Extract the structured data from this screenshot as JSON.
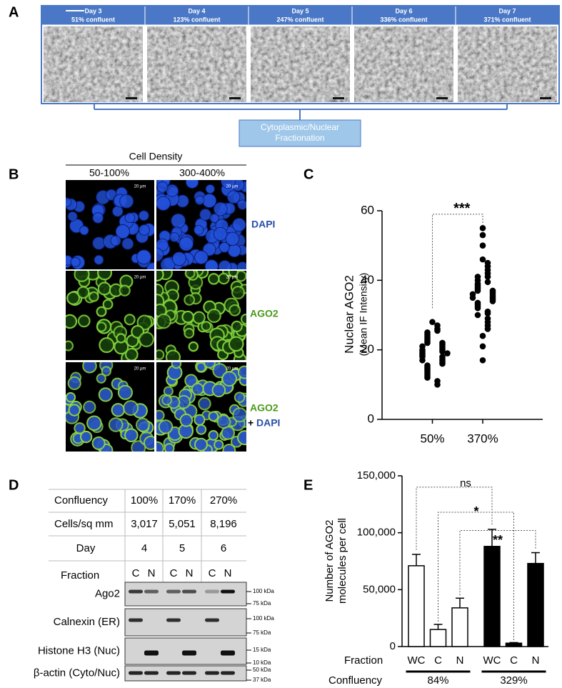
{
  "panel_labels": [
    "A",
    "B",
    "C",
    "D",
    "E"
  ],
  "panel_a": {
    "images": [
      {
        "day": "Day 3",
        "confluence": "51% confluent"
      },
      {
        "day": "Day 4",
        "confluence": "123% confluent"
      },
      {
        "day": "Day 5",
        "confluence": "247% confluent"
      },
      {
        "day": "Day 6",
        "confluence": "336% confluent"
      },
      {
        "day": "Day 7",
        "confluence": "371% confluent"
      }
    ],
    "box_lines": [
      "Cytoplasmic/Nuclear",
      "Fractionation"
    ]
  },
  "panel_b": {
    "title": "Cell Density",
    "columns": [
      "50-100%",
      "300-400%"
    ],
    "scale_bar": "20 µm",
    "row_labels": [
      "DAPI",
      "AGO2",
      "AGO2",
      "+",
      "DAPI"
    ]
  },
  "panel_d": {
    "rows": [
      [
        "Confluency",
        "100%",
        "170%",
        "270%"
      ],
      [
        "Cells/sq mm",
        "3,017",
        "5,051",
        "8,196"
      ],
      [
        "Day",
        "4",
        "5",
        "6"
      ]
    ],
    "fraction_label": "Fraction",
    "fractions": [
      "C",
      "N",
      "C",
      "N",
      "C",
      "N"
    ],
    "blots": [
      {
        "label": "Ago2",
        "markers": [
          "100 kDa",
          "75 kDa"
        ]
      },
      {
        "label": "Calnexin (ER)",
        "markers": [
          "100 kDa",
          "75 kDa"
        ]
      },
      {
        "label": "Histone H3 (Nuc)",
        "markers": [
          "15 kDa",
          "10 kDa"
        ]
      },
      {
        "label": "β-actin (Cyto/Nuc)",
        "markers": [
          "50 kDa",
          "37 kDa"
        ]
      }
    ]
  },
  "chart_data": [
    {
      "type": "scatter",
      "y_label": "Nuclear AGO2",
      "y_label_sub": "(Mean IF Intensity)",
      "categories": [
        "50%",
        "370%"
      ],
      "series": [
        {
          "color": "#000000",
          "values": [
            28,
            27,
            26,
            25.5,
            25,
            24.5,
            24,
            23.5,
            23,
            22.5,
            22,
            22,
            21.5,
            21,
            21,
            20.5,
            20,
            20,
            19.5,
            19.5,
            19,
            19,
            18.5,
            18,
            18,
            17.5,
            17,
            17,
            16.5,
            16,
            15.5,
            15,
            14.5,
            14,
            13.5,
            13,
            12.5,
            12,
            11,
            10
          ]
        },
        {
          "color": "#000000",
          "values": [
            55,
            53,
            50,
            46,
            45,
            44,
            43,
            42,
            41,
            41,
            40,
            39.5,
            39,
            38.5,
            38,
            37.5,
            37,
            37,
            36.5,
            36,
            36,
            35.5,
            35,
            35,
            34.5,
            34,
            33.5,
            33,
            32.5,
            32,
            31,
            30.5,
            30,
            29,
            28,
            27,
            26,
            24,
            21,
            17
          ]
        }
      ],
      "ylim": [
        0,
        60
      ],
      "yticks": [
        0,
        20,
        40,
        60
      ],
      "annotation": "***"
    },
    {
      "type": "bar",
      "y_label": "Number of AGO2",
      "y_label_sub": "molecules per cell",
      "x_label": "Fraction",
      "group_label": "Confluency",
      "categories": [
        "WC",
        "C",
        "N"
      ],
      "series": [
        {
          "name": "84%",
          "color": "#ffffff",
          "values": [
            71000,
            15000,
            34000
          ],
          "errors": [
            10000,
            4500,
            8500
          ]
        },
        {
          "name": "329%",
          "color": "#000000",
          "values": [
            88000,
            3000,
            73000
          ],
          "errors": [
            15000,
            500,
            9500
          ]
        }
      ],
      "ylim": [
        0,
        150000
      ],
      "yticks": [
        0,
        {
          "value": 50000,
          "label": "50,000"
        },
        {
          "value": 100000,
          "label": "100,000"
        },
        {
          "value": 150000,
          "label": "150,000"
        }
      ],
      "annotations": [
        "ns",
        "*",
        "**"
      ]
    }
  ]
}
